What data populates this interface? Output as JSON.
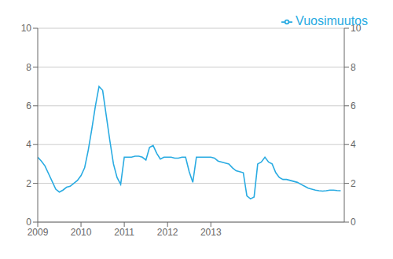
{
  "chart_data": {
    "type": "line",
    "x": [
      2009,
      2009.083333,
      2009.166667,
      2009.25,
      2009.333333,
      2009.416667,
      2009.5,
      2009.583333,
      2009.666667,
      2009.75,
      2009.833333,
      2009.916667,
      2010,
      2010.083333,
      2010.166667,
      2010.25,
      2010.333333,
      2010.416667,
      2010.5,
      2010.583333,
      2010.666667,
      2010.75,
      2010.833333,
      2010.916667,
      2011,
      2011.083333,
      2011.166667,
      2011.25,
      2011.333333,
      2011.416667,
      2011.5,
      2011.583333,
      2011.666667,
      2011.75,
      2011.833333,
      2011.916667,
      2012,
      2012.083333,
      2012.166667,
      2012.25,
      2012.333333,
      2012.416667,
      2012.5,
      2012.583333,
      2012.666667,
      2012.75,
      2012.833333,
      2012.916667,
      2013,
      2013.083333,
      2013.166667,
      2013.25,
      2013.333333,
      2013.416667,
      2013.5,
      2013.583333,
      2013.666667,
      2013.75,
      2013.833333,
      2013.916667,
      2014,
      2014.083333,
      2014.166667,
      2014.25,
      2014.333333,
      2014.416667,
      2014.5,
      2014.583333,
      2014.666667,
      2014.75,
      2014.833333,
      2014.916667,
      2015,
      2015.083333,
      2015.166667,
      2015.25,
      2015.333333,
      2015.416667,
      2015.5,
      2015.583333,
      2015.666667,
      2015.75,
      2015.833333,
      2015.916667,
      2016
    ],
    "series": [
      {
        "name": "Vuosimuutos",
        "color": "#29ABE2",
        "values": [
          3.35,
          3.15,
          2.9,
          2.5,
          2.1,
          1.7,
          1.55,
          1.65,
          1.8,
          1.85,
          2.0,
          2.15,
          2.4,
          2.8,
          3.7,
          4.8,
          6.0,
          7.0,
          6.8,
          5.5,
          4.2,
          3.0,
          2.3,
          1.95,
          3.35,
          3.35,
          3.35,
          3.4,
          3.4,
          3.35,
          3.2,
          3.85,
          3.95,
          3.55,
          3.25,
          3.35,
          3.35,
          3.35,
          3.3,
          3.3,
          3.35,
          3.35,
          2.6,
          2.05,
          3.35,
          3.35,
          3.35,
          3.35,
          3.35,
          3.3,
          3.15,
          3.1,
          3.05,
          3.0,
          2.8,
          2.65,
          2.6,
          2.55,
          1.35,
          1.2,
          1.3,
          3.0,
          3.1,
          3.35,
          3.1,
          3.0,
          2.55,
          2.3,
          2.2,
          2.2,
          2.15,
          2.1,
          2.05,
          1.95,
          1.85,
          1.75,
          1.7,
          1.65,
          1.62,
          1.6,
          1.62,
          1.65,
          1.65,
          1.63,
          1.62
        ]
      }
    ],
    "xlim": [
      2009,
      2016.083333
    ],
    "xticks": [
      2009,
      2010,
      2011,
      2012,
      2013
    ],
    "ylim": [
      0,
      10
    ],
    "yticks": [
      0,
      2,
      4,
      6,
      8,
      10
    ],
    "y2lim": [
      0,
      10
    ],
    "y2ticks": [
      0,
      2,
      4,
      6,
      8,
      10
    ],
    "grid": true,
    "legend": "upper right"
  }
}
